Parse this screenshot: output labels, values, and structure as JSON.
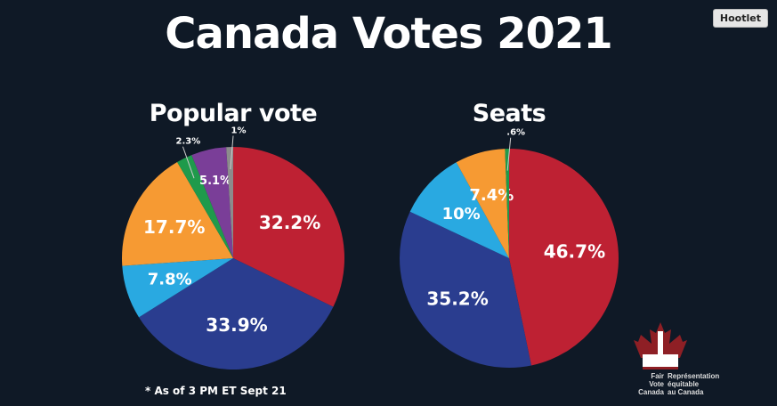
{
  "title": "Canada Votes 2021",
  "hootlet": "Hootlet",
  "footnote": "* As of 3 PM ET Sept 21",
  "logo": {
    "en": [
      "Fair",
      "Vote",
      "Canada"
    ],
    "fr": [
      "Représentation",
      "équitable",
      "au Canada"
    ]
  },
  "chart_data": [
    {
      "type": "pie",
      "title": "Popular vote",
      "start": "top",
      "direction": "clockwise",
      "slices": [
        {
          "label": "32.2%",
          "value": 32.2,
          "color": "#be2133"
        },
        {
          "label": "33.9%",
          "value": 33.9,
          "color": "#2a3d8f"
        },
        {
          "label": "7.8%",
          "value": 7.8,
          "color": "#29a9e1"
        },
        {
          "label": "17.7%",
          "value": 17.7,
          "color": "#f69a33"
        },
        {
          "label": "2.3%",
          "value": 2.3,
          "color": "#1f9a4b"
        },
        {
          "label": "5.1%",
          "value": 5.1,
          "color": "#7a3e98"
        },
        {
          "label": "1%",
          "value": 1.0,
          "color": "#8c8c8c"
        }
      ]
    },
    {
      "type": "pie",
      "title": "Seats",
      "start": "top",
      "direction": "clockwise",
      "slices": [
        {
          "label": "46.7%",
          "value": 46.7,
          "color": "#be2133"
        },
        {
          "label": "35.2%",
          "value": 35.2,
          "color": "#2a3d8f"
        },
        {
          "label": "10%",
          "value": 10,
          "color": "#29a9e1"
        },
        {
          "label": "7.4%",
          "value": 7.4,
          "color": "#f69a33"
        },
        {
          "label": ".6%",
          "value": 0.6,
          "color": "#1f9a4b"
        }
      ]
    }
  ]
}
